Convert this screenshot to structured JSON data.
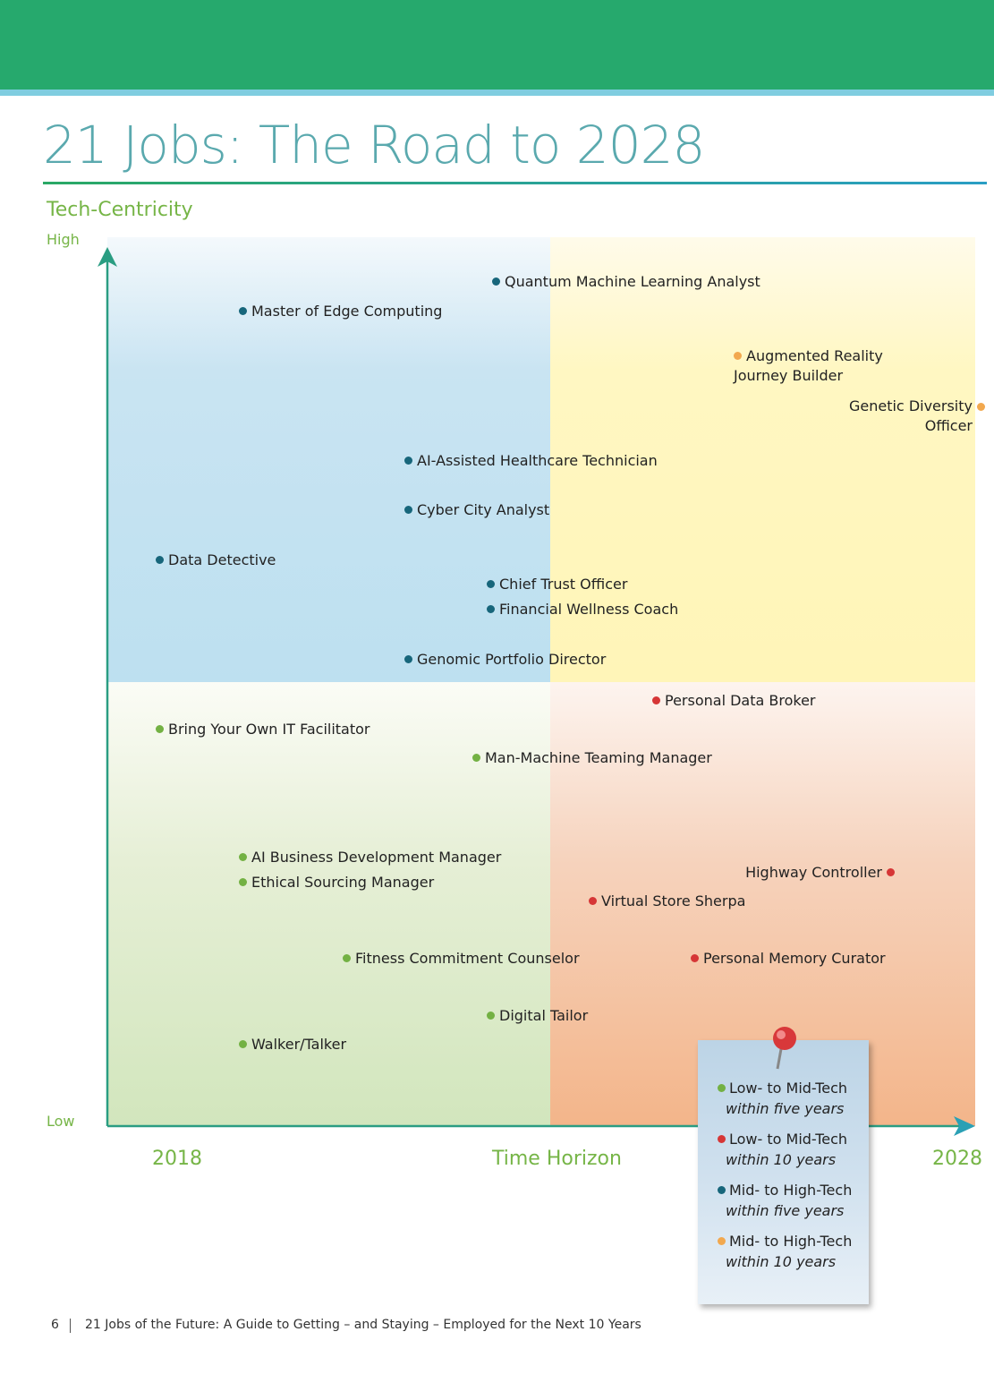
{
  "header": {
    "title": "21 Jobs: The Road to 2028"
  },
  "y_axis": {
    "label": "Tech-Centricity",
    "high": "High",
    "low": "Low"
  },
  "x_axis": {
    "start": "2018",
    "label": "Time Horizon",
    "end": "2028"
  },
  "jobs": [
    {
      "label": "Quantum Machine Learning Analyst"
    },
    {
      "label": "Master of Edge Computing"
    },
    {
      "label": "Augmented Reality\nJourney Builder"
    },
    {
      "label": "Genetic Diversity\nOfficer"
    },
    {
      "label": "AI-Assisted Healthcare Technician"
    },
    {
      "label": "Cyber City Analyst"
    },
    {
      "label": "Data Detective"
    },
    {
      "label": "Chief Trust Officer"
    },
    {
      "label": "Financial Wellness Coach"
    },
    {
      "label": "Genomic Portfolio Director"
    },
    {
      "label": "Personal Data Broker"
    },
    {
      "label": "Bring Your Own IT Facilitator"
    },
    {
      "label": "Man-Machine Teaming Manager"
    },
    {
      "label": "AI Business Development Manager"
    },
    {
      "label": "Ethical Sourcing Manager"
    },
    {
      "label": "Highway Controller"
    },
    {
      "label": "Virtual Store Sherpa"
    },
    {
      "label": "Fitness Commitment Counselor"
    },
    {
      "label": "Personal Memory Curator"
    },
    {
      "label": "Digital Tailor"
    },
    {
      "label": "Walker/Talker"
    }
  ],
  "legend": [
    {
      "tech": "Low- to Mid-Tech",
      "time": "within five years"
    },
    {
      "tech": "Low- to Mid-Tech",
      "time": "within 10 years"
    },
    {
      "tech": "Mid- to High-Tech",
      "time": "within five years"
    },
    {
      "tech": "Mid- to High-Tech",
      "time": "within 10 years"
    }
  ],
  "footer": {
    "page": "6",
    "text": "21 Jobs of the Future: A Guide to Getting – and Staying – Employed for the Next 10 Years"
  }
}
